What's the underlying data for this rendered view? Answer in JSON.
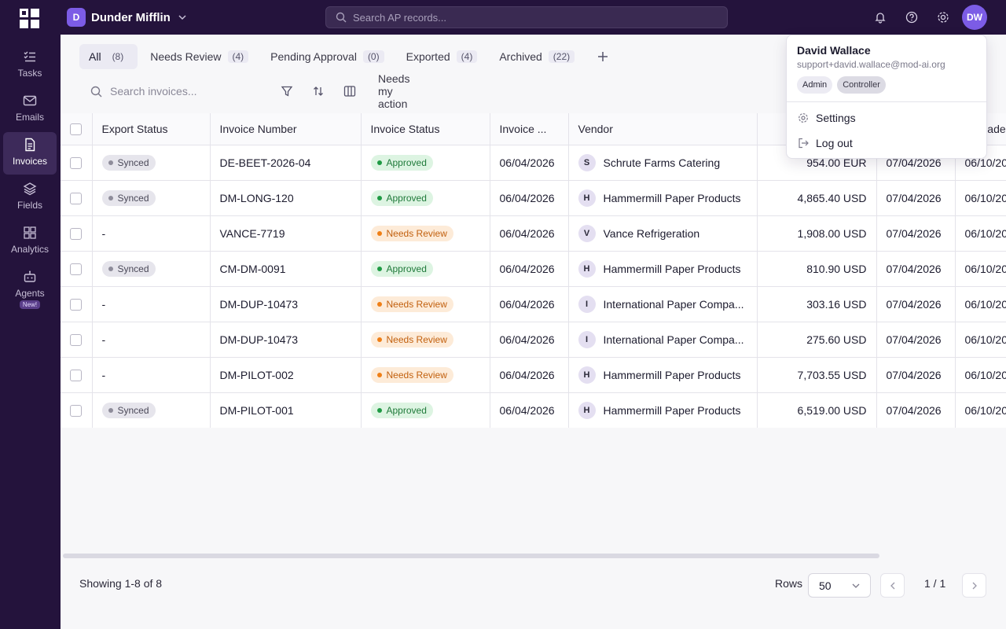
{
  "org": {
    "badge": "D",
    "name": "Dunder Mifflin"
  },
  "global_search": {
    "placeholder": "Search AP records..."
  },
  "user": {
    "initials": "DW",
    "name": "David Wallace",
    "email": "support+david.wallace@mod-ai.org",
    "roles": [
      "Admin",
      "Controller"
    ]
  },
  "user_menu": {
    "settings": "Settings",
    "logout": "Log out"
  },
  "sidebar": {
    "items": [
      {
        "label": "Tasks",
        "icon": "checklist-icon"
      },
      {
        "label": "Emails",
        "icon": "mail-icon"
      },
      {
        "label": "Invoices",
        "icon": "document-icon",
        "active": true
      },
      {
        "label": "Fields",
        "icon": "layers-icon"
      },
      {
        "label": "Analytics",
        "icon": "grid-icon"
      },
      {
        "label": "Agents",
        "icon": "robot-icon",
        "badge": "New!"
      }
    ]
  },
  "tabs": [
    {
      "label": "All",
      "count": "(8)",
      "active": true
    },
    {
      "label": "Needs Review",
      "count": "(4)"
    },
    {
      "label": "Pending Approval",
      "count": "(0)"
    },
    {
      "label": "Exported",
      "count": "(4)"
    },
    {
      "label": "Archived",
      "count": "(22)"
    }
  ],
  "toolbar": {
    "search_placeholder": "Search invoices...",
    "action_label": "Needs my action"
  },
  "table": {
    "columns": [
      "Export Status",
      "Invoice Number",
      "Invoice Status",
      "Invoice ...",
      "Vendor",
      "",
      "",
      "Uploade"
    ],
    "rows": [
      {
        "export": "Synced",
        "number": "DE-BEET-2026-04",
        "status": "Approved",
        "date": "06/04/2026",
        "vendor_initial": "S",
        "vendor": "Schrute Farms Catering",
        "amount": "954.00 EUR",
        "due": "07/04/2026",
        "uploaded": "06/10/20"
      },
      {
        "export": "Synced",
        "number": "DM-LONG-120",
        "status": "Approved",
        "date": "06/04/2026",
        "vendor_initial": "H",
        "vendor": "Hammermill Paper Products",
        "amount": "4,865.40 USD",
        "due": "07/04/2026",
        "uploaded": "06/10/20"
      },
      {
        "export": "-",
        "number": "VANCE-7719",
        "status": "Needs Review",
        "date": "06/04/2026",
        "vendor_initial": "V",
        "vendor": "Vance Refrigeration",
        "amount": "1,908.00 USD",
        "due": "07/04/2026",
        "uploaded": "06/10/20"
      },
      {
        "export": "Synced",
        "number": "CM-DM-0091",
        "status": "Approved",
        "date": "06/04/2026",
        "vendor_initial": "H",
        "vendor": "Hammermill Paper Products",
        "amount": "810.90 USD",
        "due": "07/04/2026",
        "uploaded": "06/10/20"
      },
      {
        "export": "-",
        "number": "DM-DUP-10473",
        "status": "Needs Review",
        "date": "06/04/2026",
        "vendor_initial": "I",
        "vendor": "International Paper Compa...",
        "amount": "303.16 USD",
        "due": "07/04/2026",
        "uploaded": "06/10/20"
      },
      {
        "export": "-",
        "number": "DM-DUP-10473",
        "status": "Needs Review",
        "date": "06/04/2026",
        "vendor_initial": "I",
        "vendor": "International Paper Compa...",
        "amount": "275.60 USD",
        "due": "07/04/2026",
        "uploaded": "06/10/20"
      },
      {
        "export": "-",
        "number": "DM-PILOT-002",
        "status": "Needs Review",
        "date": "06/04/2026",
        "vendor_initial": "H",
        "vendor": "Hammermill Paper Products",
        "amount": "7,703.55 USD",
        "due": "07/04/2026",
        "uploaded": "06/10/20"
      },
      {
        "export": "Synced",
        "number": "DM-PILOT-001",
        "status": "Approved",
        "date": "06/04/2026",
        "vendor_initial": "H",
        "vendor": "Hammermill Paper Products",
        "amount": "6,519.00 USD",
        "due": "07/04/2026",
        "uploaded": "06/10/20"
      }
    ]
  },
  "footer": {
    "showing": "Showing 1-8 of 8",
    "rows_label": "Rows",
    "rows_value": "50",
    "page": "1 / 1"
  },
  "colors": {
    "topbar": "#24133c",
    "accent": "#7c5ce6",
    "approved": "#1f9a44",
    "needs_review": "#ef7f16"
  }
}
